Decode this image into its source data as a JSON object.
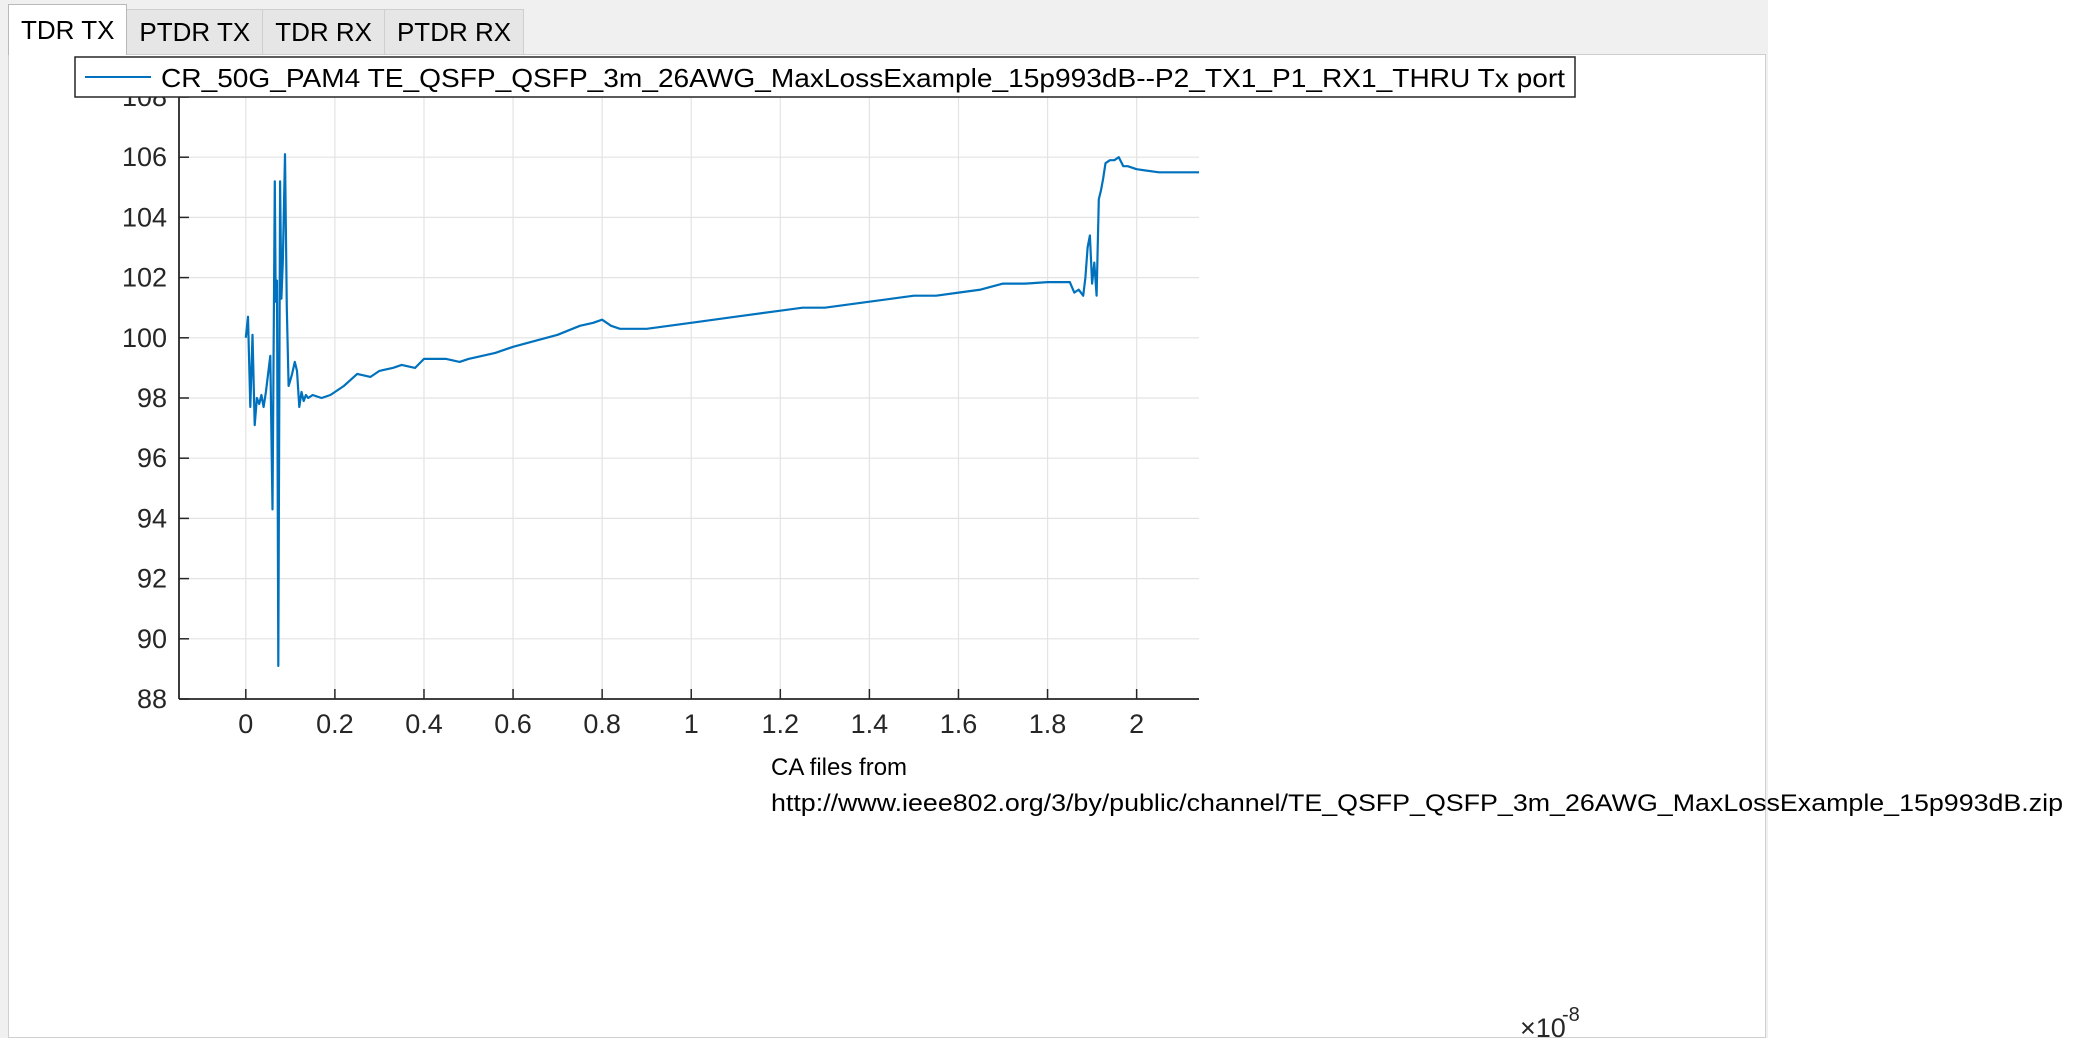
{
  "tabs": [
    {
      "label": "TDR TX",
      "active": true
    },
    {
      "label": "PTDR TX",
      "active": false
    },
    {
      "label": "TDR RX",
      "active": false
    },
    {
      "label": "PTDR RX",
      "active": false
    }
  ],
  "colors": {
    "series": "#0072bd",
    "grid": "#e3e3e3",
    "axis": "#262626"
  },
  "chart_data": {
    "type": "line",
    "title": "",
    "xlabel": "",
    "ylabel": "",
    "x_exponent_label": "×10",
    "x_exponent": "-8",
    "x_scale": 1e-08,
    "xlim": [
      -0.15,
      2.14
    ],
    "ylim": [
      88,
      108
    ],
    "xticks": [
      0,
      0.2,
      0.4,
      0.6,
      0.8,
      1,
      1.2,
      1.4,
      1.6,
      1.8,
      2
    ],
    "xtick_labels": [
      "0",
      "0.2",
      "0.4",
      "0.6",
      "0.8",
      "1",
      "1.2",
      "1.4",
      "1.6",
      "1.8",
      "2"
    ],
    "yticks": [
      88,
      90,
      92,
      94,
      96,
      98,
      100,
      102,
      104,
      106,
      108
    ],
    "ytick_labels": [
      "88",
      "90",
      "92",
      "94",
      "96",
      "98",
      "100",
      "102",
      "104",
      "106",
      "108"
    ],
    "grid": true,
    "legend_position": "top",
    "annotation": {
      "line1": "CA files from",
      "line2": "http://www.ieee802.org/3/by/public/channel/TE_QSFP_QSFP_3m_26AWG_MaxLossExample_15p993dB.zip"
    },
    "series": [
      {
        "name": "CR_50G_PAM4 TE_QSFP_QSFP_3m_26AWG_MaxLossExample_15p993dB--P2_TX1_P1_RX1_THRU Tx port",
        "x": [
          0.0,
          0.005,
          0.01,
          0.015,
          0.02,
          0.025,
          0.03,
          0.035,
          0.04,
          0.045,
          0.05,
          0.055,
          0.06,
          0.065,
          0.067,
          0.07,
          0.073,
          0.077,
          0.08,
          0.083,
          0.088,
          0.092,
          0.096,
          0.1,
          0.104,
          0.11,
          0.115,
          0.12,
          0.125,
          0.13,
          0.135,
          0.14,
          0.15,
          0.17,
          0.19,
          0.2,
          0.22,
          0.25,
          0.28,
          0.3,
          0.33,
          0.35,
          0.38,
          0.4,
          0.42,
          0.45,
          0.48,
          0.5,
          0.53,
          0.56,
          0.6,
          0.65,
          0.7,
          0.75,
          0.78,
          0.8,
          0.82,
          0.84,
          0.9,
          1.0,
          1.1,
          1.2,
          1.25,
          1.3,
          1.35,
          1.4,
          1.45,
          1.5,
          1.55,
          1.6,
          1.65,
          1.7,
          1.75,
          1.8,
          1.84,
          1.85,
          1.86,
          1.87,
          1.88,
          1.885,
          1.89,
          1.895,
          1.9,
          1.905,
          1.91,
          1.915,
          1.92,
          1.925,
          1.93,
          1.94,
          1.95,
          1.96,
          1.97,
          1.98,
          2.0,
          2.05,
          2.14
        ],
        "y": [
          100.0,
          100.7,
          97.7,
          100.1,
          97.1,
          98.0,
          97.8,
          98.1,
          97.7,
          98.2,
          98.8,
          99.4,
          94.3,
          105.2,
          101.2,
          101.9,
          89.1,
          105.2,
          101.3,
          102.5,
          106.1,
          101.0,
          98.4,
          98.6,
          98.8,
          99.2,
          98.9,
          97.7,
          98.2,
          97.9,
          98.1,
          98.0,
          98.1,
          98.0,
          98.1,
          98.2,
          98.4,
          98.8,
          98.7,
          98.9,
          99.0,
          99.1,
          99.0,
          99.3,
          99.3,
          99.3,
          99.2,
          99.3,
          99.4,
          99.5,
          99.7,
          99.9,
          100.1,
          100.4,
          100.5,
          100.6,
          100.4,
          100.3,
          100.3,
          100.5,
          100.7,
          100.9,
          101.0,
          101.0,
          101.1,
          101.2,
          101.3,
          101.4,
          101.4,
          101.5,
          101.6,
          101.8,
          101.8,
          101.85,
          101.85,
          101.85,
          101.5,
          101.6,
          101.4,
          102.0,
          103.0,
          103.4,
          101.8,
          102.5,
          101.4,
          104.6,
          104.9,
          105.3,
          105.8,
          105.9,
          105.9,
          106.0,
          105.7,
          105.7,
          105.6,
          105.5,
          105.5
        ]
      }
    ]
  }
}
